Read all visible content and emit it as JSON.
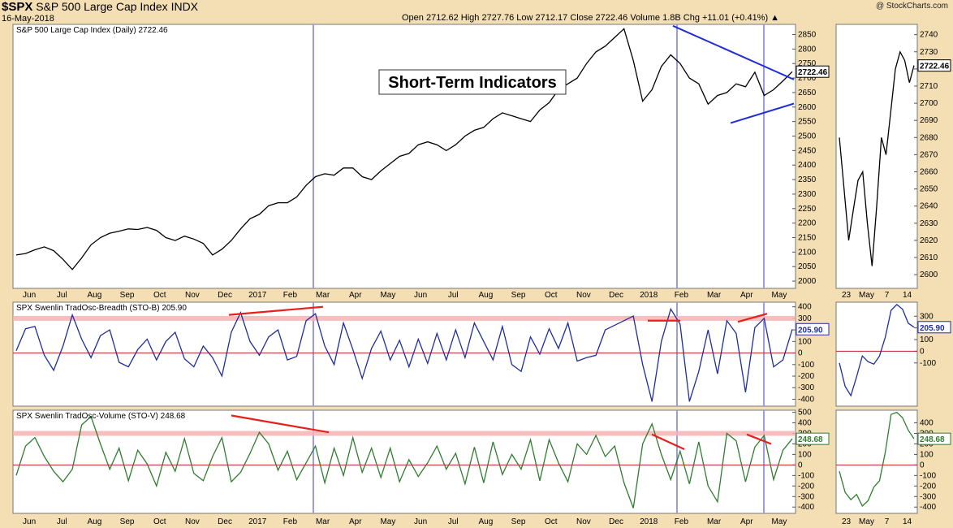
{
  "header": {
    "symbol": "$SPX",
    "name": "S&P 500 Large Cap Index",
    "exchange": "INDX",
    "date": "16-May-2018",
    "ohlc_text": "Open 2712.62   High 2727.76   Low 2712.17   Close 2722.46   Volume 1.8B   Chg +11.01 (+0.41%) ▲",
    "watermark": "@ StockCharts.com"
  },
  "annotation": "Short-Term Indicators",
  "colors": {
    "background": "#f4dfb5",
    "panel": "#ffffff",
    "price": "#000000",
    "stob": "#1f2d9e",
    "stov": "#2f7d2f",
    "trendline": "#1f2dd6",
    "redline": "#e8201c",
    "band": "#f7b3b3"
  },
  "chart_data": [
    {
      "type": "line",
      "title": "S&P 500 Large Cap Index (Daily) 2722.46",
      "x_labels": [
        "Jun",
        "Jul",
        "Aug",
        "Sep",
        "Oct",
        "Nov",
        "Dec",
        "2017",
        "Feb",
        "Mar",
        "Apr",
        "May",
        "Jun",
        "Jul",
        "Aug",
        "Sep",
        "Oct",
        "Nov",
        "Dec",
        "2018",
        "Feb",
        "Mar",
        "Apr",
        "May"
      ],
      "y_ticks": [
        2000,
        2050,
        2100,
        2150,
        2200,
        2250,
        2300,
        2350,
        2400,
        2450,
        2500,
        2550,
        2600,
        2650,
        2700,
        2750,
        2800,
        2850
      ],
      "ylim": [
        1975,
        2885
      ],
      "last_value": "2722.46",
      "series": [
        {
          "name": "SPX",
          "values": [
            2090,
            2095,
            2108,
            2118,
            2105,
            2075,
            2040,
            2080,
            2125,
            2150,
            2165,
            2172,
            2180,
            2178,
            2185,
            2175,
            2150,
            2140,
            2155,
            2145,
            2130,
            2090,
            2110,
            2140,
            2180,
            2215,
            2230,
            2260,
            2270,
            2270,
            2290,
            2330,
            2360,
            2370,
            2365,
            2390,
            2390,
            2360,
            2350,
            2380,
            2405,
            2430,
            2440,
            2470,
            2480,
            2470,
            2450,
            2470,
            2500,
            2520,
            2530,
            2560,
            2580,
            2570,
            2560,
            2550,
            2590,
            2615,
            2660,
            2680,
            2700,
            2750,
            2790,
            2810,
            2840,
            2870,
            2760,
            2620,
            2660,
            2740,
            2780,
            2750,
            2700,
            2680,
            2610,
            2640,
            2650,
            2680,
            2670,
            2720,
            2640,
            2660,
            2690,
            2722
          ]
        }
      ]
    },
    {
      "type": "line",
      "title": "SPX Swenlin TradOsc-Breadth (STO-B) 205.90",
      "y_ticks": [
        -400,
        -300,
        -200,
        -100,
        0,
        100,
        200,
        300,
        400
      ],
      "ylim": [
        -460,
        440
      ],
      "reference_band": 300,
      "last_value": "205.90",
      "series": [
        {
          "name": "STO-B",
          "values": [
            20,
            210,
            230,
            -20,
            -150,
            60,
            330,
            120,
            -40,
            150,
            200,
            -80,
            -120,
            30,
            120,
            -60,
            100,
            180,
            -50,
            -120,
            60,
            -40,
            -200,
            180,
            350,
            100,
            -20,
            140,
            200,
            -60,
            -30,
            280,
            340,
            60,
            -100,
            260,
            30,
            -220,
            40,
            190,
            -60,
            110,
            -120,
            120,
            -90,
            170,
            -60,
            200,
            -40,
            260,
            100,
            -60,
            230,
            -100,
            -160,
            140,
            -10,
            210,
            40,
            260,
            -70,
            -40,
            -20,
            200,
            240,
            280,
            320,
            -100,
            -420,
            100,
            380,
            250,
            -420,
            -160,
            200,
            -180,
            280,
            170,
            -340,
            220,
            300,
            -120,
            -60,
            205.9
          ]
        }
      ]
    },
    {
      "type": "line",
      "title": "SPX Swenlin TradOsc-Volume (STO-V) 248.68",
      "y_ticks": [
        -400,
        -300,
        -200,
        -100,
        0,
        100,
        200,
        300,
        400,
        500
      ],
      "ylim": [
        -460,
        520
      ],
      "reference_band": 300,
      "last_value": "248.68",
      "series": [
        {
          "name": "STO-V",
          "values": [
            -100,
            180,
            260,
            80,
            -60,
            -160,
            -40,
            380,
            460,
            200,
            -40,
            160,
            -150,
            140,
            10,
            -200,
            120,
            -60,
            250,
            -80,
            -150,
            80,
            260,
            -160,
            -70,
            110,
            310,
            200,
            -50,
            130,
            -140,
            20,
            180,
            -170,
            160,
            -100,
            260,
            -70,
            160,
            -120,
            160,
            -160,
            50,
            -110,
            20,
            180,
            -40,
            110,
            -180,
            170,
            -170,
            220,
            -90,
            100,
            -40,
            240,
            -150,
            240,
            20,
            -160,
            200,
            100,
            280,
            80,
            180,
            -170,
            -410,
            200,
            390,
            100,
            -140,
            130,
            -180,
            220,
            -200,
            -350,
            300,
            230,
            -160,
            170,
            280,
            -140,
            140,
            248.68
          ]
        }
      ]
    },
    {
      "type": "line",
      "title": "",
      "x_labels": [
        "23",
        "May",
        "7",
        "14"
      ],
      "y_ticks": [
        2600,
        2610,
        2620,
        2630,
        2640,
        2650,
        2660,
        2670,
        2680,
        2690,
        2700,
        2710,
        2720,
        2730,
        2740
      ],
      "ylim": [
        2592,
        2746
      ],
      "last_value": "2722.46",
      "series": [
        {
          "name": "SPX",
          "values": [
            2680,
            2650,
            2620,
            2638,
            2655,
            2660,
            2630,
            2605,
            2640,
            2680,
            2670,
            2695,
            2720,
            2730,
            2725,
            2712,
            2722
          ]
        }
      ]
    },
    {
      "type": "line",
      "title": "",
      "y_ticks": [
        -100,
        0,
        100,
        200,
        300
      ],
      "ylim": [
        -470,
        420
      ],
      "last_value": "205.90",
      "series": [
        {
          "name": "STO-B",
          "values": [
            -100,
            -300,
            -380,
            -220,
            -40,
            -90,
            -110,
            -40,
            120,
            350,
            400,
            360,
            240,
            205.9
          ]
        }
      ]
    },
    {
      "type": "line",
      "title": "",
      "y_ticks": [
        -400,
        -300,
        -200,
        -100,
        0,
        100,
        200,
        300,
        400
      ],
      "ylim": [
        -460,
        520
      ],
      "last_value": "248.68",
      "series": [
        {
          "name": "STO-V",
          "values": [
            -60,
            -260,
            -330,
            -280,
            -390,
            -340,
            -210,
            -150,
            120,
            480,
            500,
            450,
            330,
            248.68
          ]
        }
      ]
    }
  ]
}
